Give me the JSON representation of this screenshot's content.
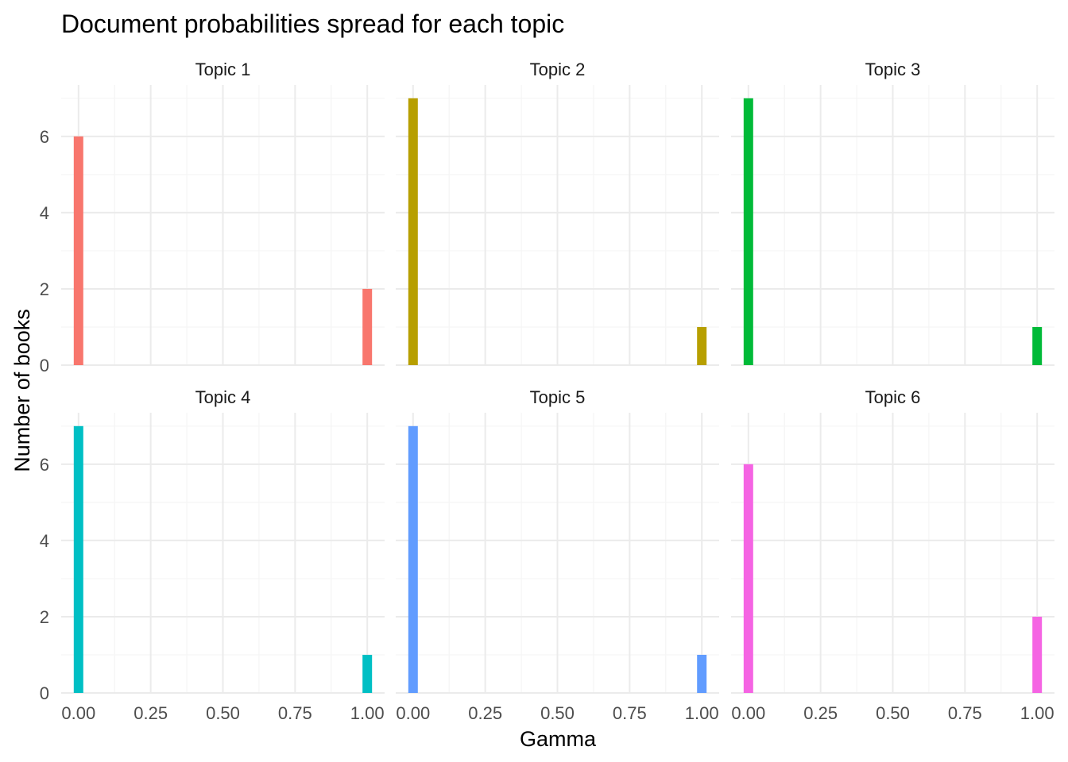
{
  "chart_data": {
    "type": "bar",
    "title": "Document probabilities spread for each topic",
    "xlabel": "Gamma",
    "ylabel": "Number of books",
    "xlim": [
      -0.06,
      1.06
    ],
    "ylim": [
      0,
      7.35
    ],
    "x_ticks": [
      "0.00",
      "0.25",
      "0.50",
      "0.75",
      "1.00"
    ],
    "x_tick_values": [
      0,
      0.25,
      0.5,
      0.75,
      1.0
    ],
    "y_ticks": [
      "0",
      "2",
      "4",
      "6"
    ],
    "y_tick_values": [
      0,
      2,
      4,
      6
    ],
    "bin_width": 0.033,
    "grid": true,
    "legend": "none",
    "facets": [
      {
        "label": "Topic 1",
        "color": "#F8766D",
        "bars": [
          {
            "x": 0.0,
            "count": 6
          },
          {
            "x": 1.0,
            "count": 2
          }
        ]
      },
      {
        "label": "Topic 2",
        "color": "#B79F00",
        "bars": [
          {
            "x": 0.0,
            "count": 7
          },
          {
            "x": 1.0,
            "count": 1
          }
        ]
      },
      {
        "label": "Topic 3",
        "color": "#00BA38",
        "bars": [
          {
            "x": 0.0,
            "count": 7
          },
          {
            "x": 1.0,
            "count": 1
          }
        ]
      },
      {
        "label": "Topic 4",
        "color": "#00BFC4",
        "bars": [
          {
            "x": 0.0,
            "count": 7
          },
          {
            "x": 1.0,
            "count": 1
          }
        ]
      },
      {
        "label": "Topic 5",
        "color": "#619CFF",
        "bars": [
          {
            "x": 0.0,
            "count": 7
          },
          {
            "x": 1.0,
            "count": 1
          }
        ]
      },
      {
        "label": "Topic 6",
        "color": "#F564E3",
        "bars": [
          {
            "x": 0.0,
            "count": 6
          },
          {
            "x": 1.0,
            "count": 2
          }
        ]
      }
    ]
  }
}
